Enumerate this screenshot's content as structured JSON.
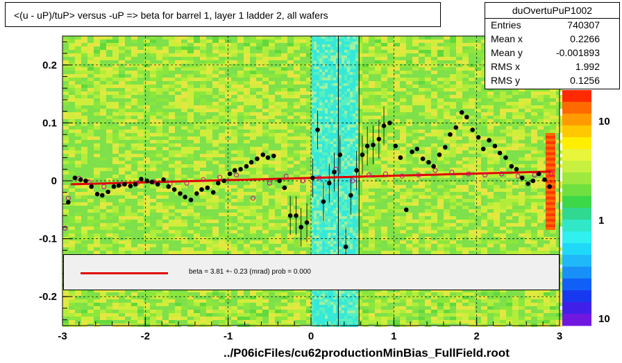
{
  "title": "<(u - uP)/tuP> versus  -uP => beta for barrel 1, layer 1 ladder 2, all wafers",
  "stats": {
    "name": "duOvertuPuP1002",
    "rows": [
      {
        "label": "Entries",
        "value": "740307"
      },
      {
        "label": "Mean x",
        "value": "0.2266"
      },
      {
        "label": "Mean y",
        "value": "-0.001893"
      },
      {
        "label": "RMS x",
        "value": "1.992"
      },
      {
        "label": "RMS y",
        "value": "0.1256"
      }
    ]
  },
  "fit_text": "beta =    3.81 +-  0.23 (mrad) prob = 0.000",
  "footer": "../P06icFiles/cu62productionMinBias_FullField.root",
  "colors": {
    "fit_line": "#e00000",
    "points": "#000000",
    "open_points": "#d0008a"
  },
  "chart_data": {
    "type": "scatter",
    "xlim": [
      -3,
      3
    ],
    "ylim": [
      -0.25,
      0.25
    ],
    "xticks": [
      -3,
      -2,
      -1,
      0,
      1,
      2,
      3
    ],
    "xtick_labels": [
      "-3",
      "-2",
      "-1",
      "0",
      "1",
      "2",
      "3"
    ],
    "yticks": [
      -0.2,
      -0.1,
      0,
      0.1,
      0.2
    ],
    "ytick_labels": [
      "-0.2",
      "-0.1",
      "0",
      "0.1",
      "0.2"
    ],
    "grid": true,
    "colorbar_labels": [
      "10",
      "1",
      "10"
    ],
    "fit": {
      "x": [
        -2.9,
        2.9
      ],
      "y": [
        -0.006,
        0.016
      ]
    },
    "points": [
      {
        "x": -2.93,
        "y": -0.037
      },
      {
        "x": -2.85,
        "y": 0.005
      },
      {
        "x": -2.78,
        "y": 0.002
      },
      {
        "x": -2.72,
        "y": 0.0
      },
      {
        "x": -2.65,
        "y": -0.01
      },
      {
        "x": -2.58,
        "y": -0.023
      },
      {
        "x": -2.52,
        "y": -0.025
      },
      {
        "x": -2.45,
        "y": -0.019
      },
      {
        "x": -2.38,
        "y": -0.01
      },
      {
        "x": -2.32,
        "y": -0.008
      },
      {
        "x": -2.25,
        "y": -0.006
      },
      {
        "x": -2.18,
        "y": -0.009
      },
      {
        "x": -2.12,
        "y": -0.006
      },
      {
        "x": -2.05,
        "y": 0.003
      },
      {
        "x": -1.98,
        "y": 0.0
      },
      {
        "x": -1.92,
        "y": -0.002
      },
      {
        "x": -1.85,
        "y": -0.006
      },
      {
        "x": -1.78,
        "y": 0.002
      },
      {
        "x": -1.72,
        "y": -0.01
      },
      {
        "x": -1.65,
        "y": -0.015
      },
      {
        "x": -1.58,
        "y": -0.022
      },
      {
        "x": -1.52,
        "y": -0.028
      },
      {
        "x": -1.45,
        "y": -0.033
      },
      {
        "x": -1.38,
        "y": -0.022
      },
      {
        "x": -1.32,
        "y": -0.015
      },
      {
        "x": -1.25,
        "y": -0.012
      },
      {
        "x": -1.18,
        "y": -0.02
      },
      {
        "x": -1.12,
        "y": -0.004
      },
      {
        "x": -1.05,
        "y": 0.0
      },
      {
        "x": -0.98,
        "y": 0.012
      },
      {
        "x": -0.92,
        "y": 0.018
      },
      {
        "x": -0.85,
        "y": 0.02
      },
      {
        "x": -0.78,
        "y": 0.025
      },
      {
        "x": -0.72,
        "y": 0.032
      },
      {
        "x": -0.65,
        "y": 0.038
      },
      {
        "x": -0.58,
        "y": 0.045
      },
      {
        "x": -0.52,
        "y": 0.04
      },
      {
        "x": -0.45,
        "y": 0.043
      },
      {
        "x": -0.38,
        "y": 0.0
      },
      {
        "x": -0.32,
        "y": -0.012
      },
      {
        "x": -0.25,
        "y": -0.06
      },
      {
        "x": -0.18,
        "y": -0.06
      },
      {
        "x": -0.12,
        "y": -0.08
      },
      {
        "x": -0.05,
        "y": -0.072
      },
      {
        "x": 0.02,
        "y": 0.005
      },
      {
        "x": 0.08,
        "y": 0.088
      },
      {
        "x": 0.15,
        "y": -0.036
      },
      {
        "x": 0.22,
        "y": -0.004
      },
      {
        "x": 0.28,
        "y": 0.015
      },
      {
        "x": 0.35,
        "y": 0.045
      },
      {
        "x": 0.42,
        "y": -0.114
      },
      {
        "x": 0.48,
        "y": -0.025
      },
      {
        "x": 0.55,
        "y": 0.018
      },
      {
        "x": 0.62,
        "y": 0.045
      },
      {
        "x": 0.68,
        "y": 0.06
      },
      {
        "x": 0.75,
        "y": 0.062
      },
      {
        "x": 0.82,
        "y": 0.072
      },
      {
        "x": 0.88,
        "y": 0.095
      },
      {
        "x": 0.95,
        "y": 0.1
      },
      {
        "x": 1.02,
        "y": 0.06
      },
      {
        "x": 1.08,
        "y": 0.04
      },
      {
        "x": 1.15,
        "y": -0.05
      },
      {
        "x": 1.22,
        "y": 0.05
      },
      {
        "x": 1.28,
        "y": 0.055
      },
      {
        "x": 1.35,
        "y": 0.038
      },
      {
        "x": 1.42,
        "y": 0.032
      },
      {
        "x": 1.48,
        "y": 0.025
      },
      {
        "x": 1.55,
        "y": 0.045
      },
      {
        "x": 1.62,
        "y": 0.058
      },
      {
        "x": 1.68,
        "y": 0.08
      },
      {
        "x": 1.75,
        "y": 0.092
      },
      {
        "x": 1.82,
        "y": 0.118
      },
      {
        "x": 1.88,
        "y": 0.11
      },
      {
        "x": 1.95,
        "y": 0.088
      },
      {
        "x": 2.02,
        "y": 0.075
      },
      {
        "x": 2.08,
        "y": 0.055
      },
      {
        "x": 2.15,
        "y": 0.07
      },
      {
        "x": 2.22,
        "y": 0.06
      },
      {
        "x": 2.28,
        "y": 0.048
      },
      {
        "x": 2.35,
        "y": 0.04
      },
      {
        "x": 2.42,
        "y": 0.025
      },
      {
        "x": 2.48,
        "y": 0.02
      },
      {
        "x": 2.55,
        "y": 0.005
      },
      {
        "x": 2.62,
        "y": -0.005
      },
      {
        "x": 2.68,
        "y": 0.0
      },
      {
        "x": 2.75,
        "y": 0.012
      },
      {
        "x": 2.82,
        "y": 0.002
      },
      {
        "x": 2.88,
        "y": -0.01
      }
    ],
    "open_points": [
      {
        "x": -2.97,
        "y": -0.082
      },
      {
        "x": -2.93,
        "y": -0.03
      },
      {
        "x": -2.8,
        "y": 0.004
      },
      {
        "x": -2.68,
        "y": -0.002
      },
      {
        "x": -2.5,
        "y": -0.01
      },
      {
        "x": -2.3,
        "y": -0.006
      },
      {
        "x": -2.1,
        "y": -0.004
      },
      {
        "x": -1.9,
        "y": -0.002
      },
      {
        "x": -1.7,
        "y": -0.005
      },
      {
        "x": -1.5,
        "y": -0.004
      },
      {
        "x": -1.3,
        "y": 0.002
      },
      {
        "x": -1.1,
        "y": 0.006
      },
      {
        "x": -0.9,
        "y": 0.01
      },
      {
        "x": -0.7,
        "y": -0.03
      },
      {
        "x": -0.5,
        "y": -0.004
      },
      {
        "x": -0.3,
        "y": 0.008
      },
      {
        "x": -0.1,
        "y": 0.0
      },
      {
        "x": 0.1,
        "y": 0.005
      },
      {
        "x": 0.3,
        "y": 0.02
      },
      {
        "x": 0.5,
        "y": 0.0
      },
      {
        "x": 0.7,
        "y": 0.01
      },
      {
        "x": 0.9,
        "y": 0.012
      },
      {
        "x": 1.1,
        "y": 0.008
      },
      {
        "x": 1.3,
        "y": 0.01
      },
      {
        "x": 1.5,
        "y": 0.018
      },
      {
        "x": 1.7,
        "y": 0.015
      },
      {
        "x": 1.9,
        "y": 0.012
      },
      {
        "x": 2.1,
        "y": 0.01
      },
      {
        "x": 2.3,
        "y": 0.012
      },
      {
        "x": 2.5,
        "y": 0.008
      },
      {
        "x": 2.7,
        "y": 0.01
      },
      {
        "x": 2.9,
        "y": 0.012
      }
    ]
  }
}
